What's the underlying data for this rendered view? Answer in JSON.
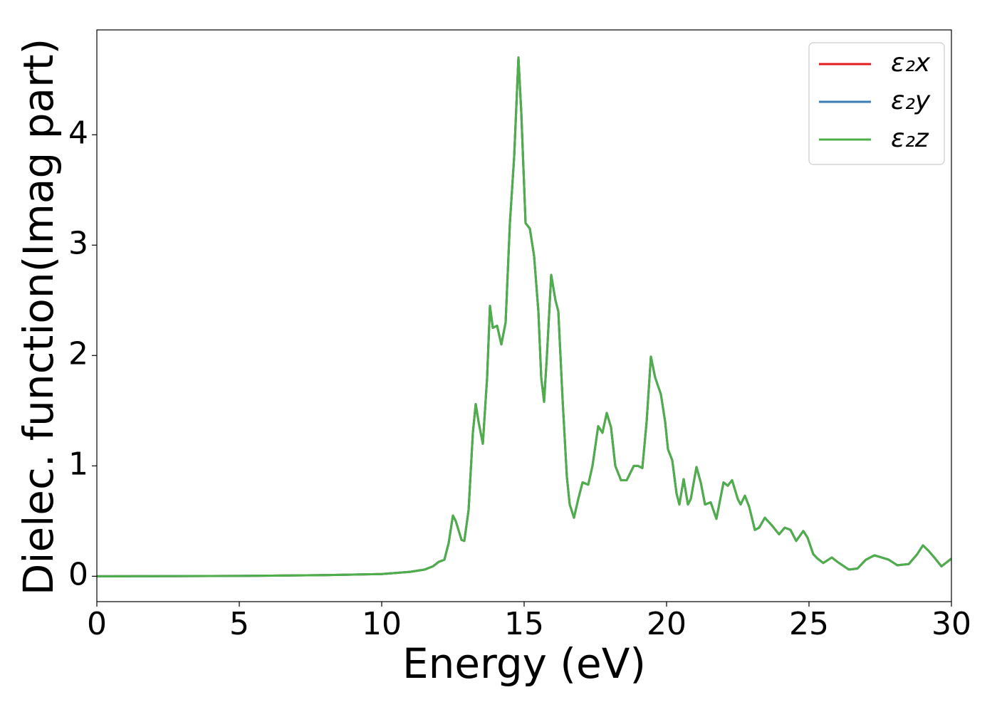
{
  "chart_data": {
    "type": "line",
    "x_label": "Energy (eV)",
    "y_label": "Dielec. function(Imag part)",
    "xlim": [
      0,
      30
    ],
    "xticks": [
      0,
      5,
      10,
      15,
      20,
      25,
      30
    ],
    "ylim": [
      -0.23,
      4.95
    ],
    "yticks": [
      0,
      1,
      2,
      3,
      4
    ],
    "legend": "upper right",
    "grid": false,
    "x": [
      0,
      5,
      8,
      10,
      11,
      11.5,
      11.8,
      12,
      12.2,
      12.35,
      12.5,
      12.6,
      12.8,
      12.9,
      13.05,
      13.2,
      13.3,
      13.4,
      13.55,
      13.7,
      13.8,
      13.9,
      14.05,
      14.2,
      14.35,
      14.5,
      14.65,
      14.8,
      14.9,
      15.05,
      15.2,
      15.35,
      15.5,
      15.6,
      15.7,
      15.8,
      15.95,
      16.1,
      16.2,
      16.35,
      16.5,
      16.6,
      16.75,
      16.9,
      17.05,
      17.25,
      17.4,
      17.6,
      17.75,
      17.9,
      18.05,
      18.2,
      18.4,
      18.6,
      18.85,
      19.0,
      19.15,
      19.3,
      19.45,
      19.6,
      19.8,
      19.95,
      20.05,
      20.2,
      20.35,
      20.45,
      20.6,
      20.75,
      20.85,
      21.05,
      21.2,
      21.35,
      21.55,
      21.75,
      22.0,
      22.15,
      22.3,
      22.5,
      22.6,
      22.75,
      22.9,
      23.1,
      23.25,
      23.45,
      23.7,
      23.95,
      24.15,
      24.35,
      24.55,
      24.8,
      24.95,
      25.15,
      25.3,
      25.5,
      25.8,
      26.0,
      26.4,
      26.7,
      27.0,
      27.3,
      27.8,
      28.1,
      28.5,
      28.8,
      29.0,
      29.2,
      29.4,
      29.65,
      30
    ],
    "series": [
      {
        "name": "ε₂x",
        "color": "#e41a1c",
        "values": [
          0,
          0.003,
          0.01,
          0.02,
          0.04,
          0.06,
          0.09,
          0.13,
          0.15,
          0.3,
          0.55,
          0.5,
          0.33,
          0.32,
          0.6,
          1.3,
          1.56,
          1.4,
          1.2,
          1.8,
          2.45,
          2.25,
          2.27,
          2.1,
          2.3,
          3.2,
          3.8,
          4.7,
          4.2,
          3.2,
          3.15,
          2.9,
          2.4,
          1.8,
          1.58,
          2.0,
          2.73,
          2.5,
          2.4,
          1.6,
          0.9,
          0.65,
          0.53,
          0.7,
          0.85,
          0.83,
          1.0,
          1.36,
          1.3,
          1.48,
          1.35,
          1.0,
          0.87,
          0.87,
          1.0,
          1.0,
          0.98,
          1.4,
          1.99,
          1.8,
          1.65,
          1.4,
          1.15,
          1.05,
          0.75,
          0.65,
          0.88,
          0.65,
          0.7,
          0.99,
          0.85,
          0.65,
          0.67,
          0.52,
          0.85,
          0.82,
          0.87,
          0.7,
          0.65,
          0.73,
          0.63,
          0.42,
          0.44,
          0.53,
          0.46,
          0.38,
          0.44,
          0.42,
          0.32,
          0.41,
          0.35,
          0.2,
          0.16,
          0.12,
          0.17,
          0.13,
          0.06,
          0.07,
          0.15,
          0.19,
          0.15,
          0.1,
          0.11,
          0.2,
          0.28,
          0.23,
          0.17,
          0.09,
          0.16
        ]
      },
      {
        "name": "ε₂y",
        "color": "#377eb8",
        "values": [
          0,
          0.003,
          0.01,
          0.02,
          0.04,
          0.06,
          0.09,
          0.13,
          0.15,
          0.3,
          0.55,
          0.5,
          0.33,
          0.32,
          0.6,
          1.3,
          1.56,
          1.4,
          1.2,
          1.8,
          2.45,
          2.25,
          2.27,
          2.1,
          2.3,
          3.2,
          3.8,
          4.7,
          4.2,
          3.2,
          3.15,
          2.9,
          2.4,
          1.8,
          1.58,
          2.0,
          2.73,
          2.5,
          2.4,
          1.6,
          0.9,
          0.65,
          0.53,
          0.7,
          0.85,
          0.83,
          1.0,
          1.36,
          1.3,
          1.48,
          1.35,
          1.0,
          0.87,
          0.87,
          1.0,
          1.0,
          0.98,
          1.4,
          1.99,
          1.8,
          1.65,
          1.4,
          1.15,
          1.05,
          0.75,
          0.65,
          0.88,
          0.65,
          0.7,
          0.99,
          0.85,
          0.65,
          0.67,
          0.52,
          0.85,
          0.82,
          0.87,
          0.7,
          0.65,
          0.73,
          0.63,
          0.42,
          0.44,
          0.53,
          0.46,
          0.38,
          0.44,
          0.42,
          0.32,
          0.41,
          0.35,
          0.2,
          0.16,
          0.12,
          0.17,
          0.13,
          0.06,
          0.07,
          0.15,
          0.19,
          0.15,
          0.1,
          0.11,
          0.2,
          0.28,
          0.23,
          0.17,
          0.09,
          0.16
        ]
      },
      {
        "name": "ε₂z",
        "color": "#4daf4a",
        "values": [
          0,
          0.003,
          0.01,
          0.02,
          0.04,
          0.06,
          0.09,
          0.13,
          0.15,
          0.3,
          0.55,
          0.5,
          0.33,
          0.32,
          0.6,
          1.3,
          1.56,
          1.4,
          1.2,
          1.8,
          2.45,
          2.25,
          2.27,
          2.1,
          2.3,
          3.2,
          3.8,
          4.7,
          4.2,
          3.2,
          3.15,
          2.9,
          2.4,
          1.8,
          1.58,
          2.0,
          2.73,
          2.5,
          2.4,
          1.6,
          0.9,
          0.65,
          0.53,
          0.7,
          0.85,
          0.83,
          1.0,
          1.36,
          1.3,
          1.48,
          1.35,
          1.0,
          0.87,
          0.87,
          1.0,
          1.0,
          0.98,
          1.4,
          1.99,
          1.8,
          1.65,
          1.4,
          1.15,
          1.05,
          0.75,
          0.65,
          0.88,
          0.65,
          0.7,
          0.99,
          0.85,
          0.65,
          0.67,
          0.52,
          0.85,
          0.82,
          0.87,
          0.7,
          0.65,
          0.73,
          0.63,
          0.42,
          0.44,
          0.53,
          0.46,
          0.38,
          0.44,
          0.42,
          0.32,
          0.41,
          0.35,
          0.2,
          0.16,
          0.12,
          0.17,
          0.13,
          0.06,
          0.07,
          0.15,
          0.19,
          0.15,
          0.1,
          0.11,
          0.2,
          0.28,
          0.23,
          0.17,
          0.09,
          0.16
        ]
      }
    ]
  }
}
